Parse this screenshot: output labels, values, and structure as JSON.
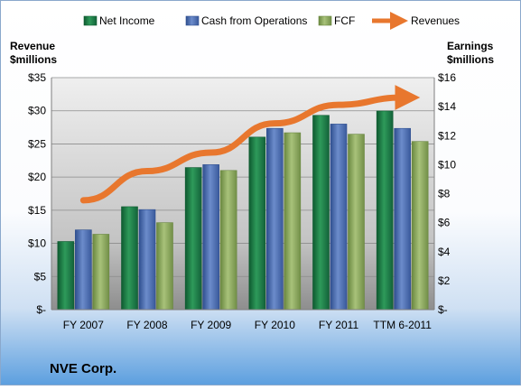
{
  "chart_data": {
    "type": "bar",
    "company": "NVE Corp.",
    "categories": [
      "FY 2007",
      "FY 2008",
      "FY 2009",
      "FY 2010",
      "FY 2011",
      "TTM 6-2011"
    ],
    "left_axis": {
      "label_line1": "Revenue",
      "label_line2": "$millions",
      "ylim": [
        0,
        35
      ],
      "ticks": [
        0,
        5,
        10,
        15,
        20,
        25,
        30,
        35
      ],
      "tick_labels": [
        "$-",
        "$5",
        "$10",
        "$15",
        "$20",
        "$25",
        "$30",
        "$35"
      ]
    },
    "right_axis": {
      "label_line1": "Earnings",
      "label_line2": "$millions",
      "ylim": [
        0,
        16
      ],
      "ticks": [
        0,
        2,
        4,
        6,
        8,
        10,
        12,
        14,
        16
      ],
      "tick_labels": [
        "$-",
        "$2",
        "$4",
        "$6",
        "$8",
        "$10",
        "$12",
        "$14",
        "$16"
      ]
    },
    "series": [
      {
        "name": "Net Income",
        "type": "bar",
        "axis": "right",
        "color": "#1F7A45",
        "values": [
          4.7,
          7.1,
          9.8,
          11.9,
          13.4,
          13.7
        ]
      },
      {
        "name": "Cash from Operations",
        "type": "bar",
        "axis": "right",
        "color": "#4A6BAF",
        "values": [
          5.5,
          6.9,
          10.0,
          12.5,
          12.8,
          12.5
        ]
      },
      {
        "name": "FCF",
        "type": "bar",
        "axis": "right",
        "color": "#86A35A",
        "values": [
          5.2,
          6.0,
          9.6,
          12.2,
          12.1,
          11.6
        ]
      },
      {
        "name": "Revenues",
        "type": "line",
        "axis": "left",
        "color": "#E8772E",
        "values": [
          16.5,
          20.9,
          23.7,
          28.1,
          30.9,
          32.0
        ]
      }
    ],
    "legend_position": "top",
    "grid": true
  }
}
